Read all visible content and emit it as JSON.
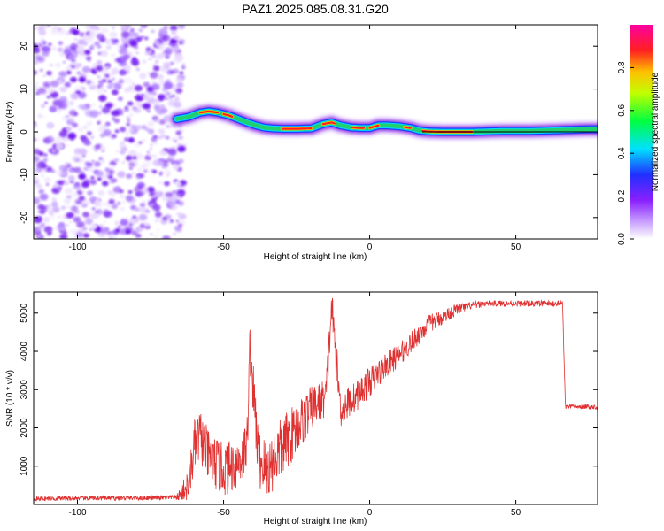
{
  "title": "PAZ1.2025.085.08.31.G20",
  "colors": {
    "snr_line": "#e03030",
    "ridge_outer": "#8a2be2",
    "ridge_mid": "#2040ff",
    "ridge_inner": "#20d070",
    "ridge_core": "#ff2020",
    "noise": "#7b2cf0"
  },
  "chart_data": [
    {
      "type": "heatmap",
      "title": "PAZ1.2025.085.08.31.G20",
      "xlabel": "Height of straight line (km)",
      "ylabel": "Frequency (Hz)",
      "xlim": [
        -115,
        78
      ],
      "ylim": [
        -25,
        25
      ],
      "xticks": [
        -100,
        -50,
        0,
        50
      ],
      "yticks": [
        -20,
        -10,
        0,
        10,
        20
      ],
      "xtick_labels": [
        "-100",
        "-50",
        "0",
        "50"
      ],
      "ytick_labels": [
        "-20",
        "-10",
        "0",
        "10",
        "20"
      ],
      "colorbar": {
        "label": "Normalized spectral amplitude",
        "range": [
          0,
          1
        ],
        "ticks": [
          "0.0",
          "0.2",
          "0.4",
          "0.6",
          "0.8"
        ],
        "tick_values": [
          0.0,
          0.2,
          0.4,
          0.6,
          0.8
        ],
        "colormap": "rainbow (white → purple → blue → cyan → green → yellow → red → magenta)"
      },
      "noise_region": {
        "x_from": -115,
        "x_to": -66
      },
      "ridge": {
        "x": [
          -66,
          -62,
          -58,
          -55,
          -52,
          -48,
          -45,
          -42,
          -39,
          -36,
          -33,
          -30,
          -25,
          -20,
          -16,
          -13,
          -10,
          -6,
          -3,
          0,
          3,
          6,
          10,
          14,
          17,
          20,
          25,
          30,
          35,
          40,
          45,
          50,
          55,
          60,
          65,
          70,
          75,
          78
        ],
        "freq": [
          3.0,
          3.5,
          4.5,
          4.8,
          4.5,
          3.8,
          3.0,
          2.2,
          1.5,
          1.0,
          0.8,
          0.7,
          0.7,
          0.8,
          1.8,
          2.2,
          1.5,
          1.0,
          0.9,
          0.9,
          1.5,
          1.5,
          1.3,
          0.9,
          0.3,
          0.1,
          0.0,
          0.0,
          0.0,
          0.1,
          0.2,
          0.2,
          0.2,
          0.3,
          0.4,
          0.5,
          0.6,
          0.6
        ]
      },
      "zero_line": {
        "x_from": 18,
        "x_to": 78,
        "freq": 0
      },
      "grid": false
    },
    {
      "type": "line",
      "xlabel": "Height of straight line (km)",
      "ylabel": "SNR (10 * v/v)",
      "xlim": [
        -115,
        78
      ],
      "ylim": [
        0,
        5550
      ],
      "xticks": [
        -100,
        -50,
        0,
        50
      ],
      "yticks": [
        1000,
        2000,
        3000,
        4000,
        5000
      ],
      "xtick_labels": [
        "-100",
        "-50",
        "0",
        "50"
      ],
      "ytick_labels": [
        "1000",
        "2000",
        "3000",
        "4000",
        "5000"
      ],
      "series": [
        {
          "x": [
            -115,
            -100,
            -80,
            -66,
            -62,
            -60,
            -58,
            -55,
            -50,
            -45,
            -42,
            -41,
            -38,
            -35,
            -30,
            -25,
            -20,
            -15,
            -13,
            -10,
            -5,
            0,
            5,
            10,
            15,
            20,
            25,
            30,
            35,
            40,
            45,
            50,
            55,
            60,
            66,
            67,
            70,
            75,
            78
          ],
          "values": [
            150,
            160,
            170,
            180,
            500,
            1500,
            1800,
            1200,
            900,
            1100,
            1500,
            4100,
            1200,
            900,
            1500,
            2000,
            2500,
            2800,
            5200,
            2500,
            2800,
            3200,
            3600,
            3900,
            4300,
            4700,
            4900,
            5100,
            5200,
            5250,
            5250,
            5250,
            5250,
            5250,
            5250,
            2550,
            2550,
            2550,
            2550
          ],
          "noise_amplitude": [
            60,
            60,
            60,
            70,
            450,
            700,
            700,
            700,
            700,
            700,
            700,
            700,
            800,
            800,
            800,
            700,
            600,
            500,
            500,
            500,
            400,
            400,
            350,
            300,
            280,
            250,
            200,
            150,
            100,
            80,
            80,
            80,
            80,
            80,
            80,
            60,
            60,
            60,
            60
          ]
        }
      ],
      "grid": false
    }
  ]
}
